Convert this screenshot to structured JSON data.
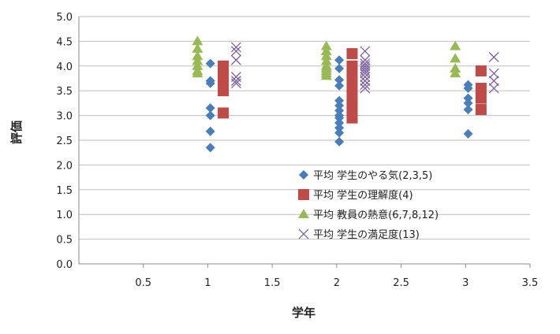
{
  "chart_data": {
    "type": "scatter",
    "xlabel": "学年",
    "ylabel": "評価",
    "xlim": [
      0,
      3.5
    ],
    "ylim": [
      0,
      5
    ],
    "x_ticks": [
      "0.5",
      "1",
      "1.5",
      "2",
      "2.5",
      "3",
      "3.5"
    ],
    "y_ticks": [
      "0.0",
      "0.5",
      "1.0",
      "1.5",
      "2.0",
      "2.5",
      "3.0",
      "3.5",
      "4.0",
      "4.5",
      "5.0"
    ],
    "grid": "horizontal",
    "legend_position": "lower-right",
    "series": [
      {
        "name": "平均 学生のやる気(2,3,5)",
        "marker": "diamond",
        "color": "#4a7ebb",
        "points": [
          [
            1.02,
            4.05
          ],
          [
            1.02,
            3.7
          ],
          [
            1.02,
            3.65
          ],
          [
            1.02,
            3.15
          ],
          [
            1.02,
            3.0
          ],
          [
            1.02,
            2.68
          ],
          [
            1.02,
            2.35
          ],
          [
            2.02,
            4.12
          ],
          [
            2.02,
            3.95
          ],
          [
            2.02,
            3.72
          ],
          [
            2.02,
            3.6
          ],
          [
            2.02,
            3.3
          ],
          [
            2.02,
            3.2
          ],
          [
            2.02,
            3.1
          ],
          [
            2.02,
            3.0
          ],
          [
            2.02,
            2.95
          ],
          [
            2.02,
            2.85
          ],
          [
            2.02,
            2.75
          ],
          [
            2.02,
            2.65
          ],
          [
            2.02,
            2.47
          ],
          [
            3.02,
            3.62
          ],
          [
            3.02,
            3.55
          ],
          [
            3.02,
            3.35
          ],
          [
            3.02,
            3.25
          ],
          [
            3.02,
            3.12
          ],
          [
            3.02,
            2.63
          ]
        ]
      },
      {
        "name": "平均 学生の理解度(4)",
        "marker": "square",
        "color": "#be4b48",
        "points": [
          [
            1.12,
            4.0
          ],
          [
            1.12,
            3.9
          ],
          [
            1.12,
            3.8
          ],
          [
            1.12,
            3.7
          ],
          [
            1.12,
            3.6
          ],
          [
            1.12,
            3.5
          ],
          [
            1.12,
            3.05
          ],
          [
            2.12,
            4.25
          ],
          [
            2.12,
            4.0
          ],
          [
            2.12,
            3.85
          ],
          [
            2.12,
            3.7
          ],
          [
            2.12,
            3.55
          ],
          [
            2.12,
            3.4
          ],
          [
            2.12,
            3.25
          ],
          [
            2.12,
            3.1
          ],
          [
            2.12,
            2.95
          ],
          [
            3.12,
            3.9
          ],
          [
            3.12,
            3.55
          ],
          [
            3.12,
            3.35
          ],
          [
            3.12,
            3.12
          ]
        ]
      },
      {
        "name": "平均 教員の熱意(6,7,8,12)",
        "marker": "triangle",
        "color": "#98b954",
        "points": [
          [
            0.92,
            4.5
          ],
          [
            0.92,
            4.35
          ],
          [
            0.92,
            4.2
          ],
          [
            0.92,
            4.1
          ],
          [
            0.92,
            4.0
          ],
          [
            0.92,
            3.9
          ],
          [
            0.92,
            3.85
          ],
          [
            1.92,
            4.4
          ],
          [
            1.92,
            4.3
          ],
          [
            1.92,
            4.2
          ],
          [
            1.92,
            4.1
          ],
          [
            1.92,
            4.0
          ],
          [
            1.92,
            3.95
          ],
          [
            1.92,
            3.9
          ],
          [
            1.92,
            3.85
          ],
          [
            1.92,
            3.8
          ],
          [
            2.92,
            4.4
          ],
          [
            2.92,
            4.15
          ],
          [
            2.92,
            3.95
          ],
          [
            2.92,
            3.85
          ]
        ]
      },
      {
        "name": "平均 学生の満足度(13)",
        "marker": "x",
        "color": "#7d60a0",
        "points": [
          [
            1.22,
            4.38
          ],
          [
            1.22,
            4.3
          ],
          [
            1.22,
            4.12
          ],
          [
            1.22,
            3.78
          ],
          [
            1.22,
            3.7
          ],
          [
            1.22,
            3.65
          ],
          [
            2.22,
            4.3
          ],
          [
            2.22,
            4.12
          ],
          [
            2.22,
            4.05
          ],
          [
            2.22,
            4.0
          ],
          [
            2.22,
            3.95
          ],
          [
            2.22,
            3.9
          ],
          [
            2.22,
            3.85
          ],
          [
            2.22,
            3.78
          ],
          [
            2.22,
            3.7
          ],
          [
            2.22,
            3.62
          ],
          [
            2.22,
            3.55
          ],
          [
            3.22,
            4.18
          ],
          [
            3.22,
            3.85
          ],
          [
            3.22,
            3.7
          ],
          [
            3.22,
            3.55
          ]
        ]
      }
    ]
  }
}
